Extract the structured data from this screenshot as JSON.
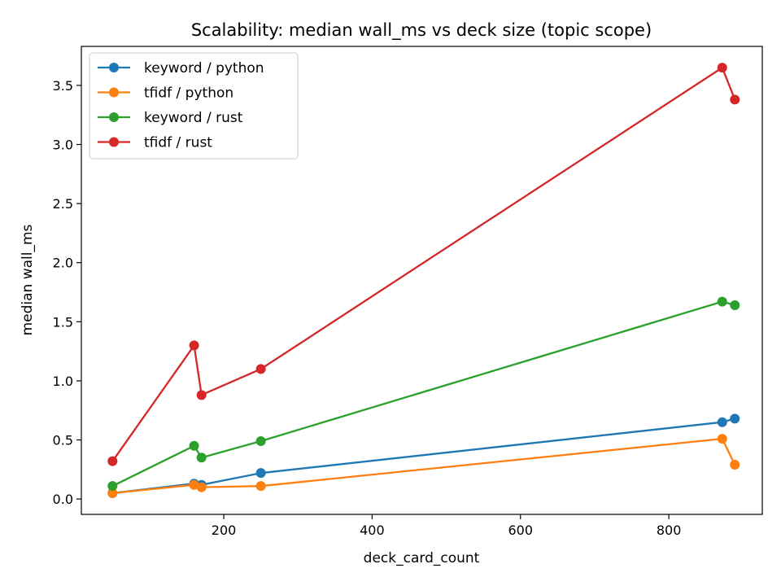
{
  "chart_data": {
    "type": "line",
    "title": "Scalability: median wall_ms vs deck size (topic scope)",
    "xlabel": "deck_card_count",
    "ylabel": "median wall_ms",
    "xlim": [
      8,
      926
    ],
    "ylim": [
      -0.13,
      3.83
    ],
    "xticks": [
      200,
      400,
      600,
      800
    ],
    "yticks": [
      0.0,
      0.5,
      1.0,
      1.5,
      2.0,
      2.5,
      3.0,
      3.5
    ],
    "xtick_labels": [
      "200",
      "400",
      "600",
      "800"
    ],
    "ytick_labels": [
      "0.0",
      "0.5",
      "1.0",
      "1.5",
      "2.0",
      "2.5",
      "3.0",
      "3.5"
    ],
    "grid": false,
    "legend_position": "top-left",
    "series": [
      {
        "name": "keyword / python",
        "color": "#1f77b4",
        "x": [
          50,
          160,
          170,
          250,
          872,
          889
        ],
        "y": [
          0.05,
          0.13,
          0.12,
          0.22,
          0.65,
          0.68
        ]
      },
      {
        "name": "tfidf / python",
        "color": "#ff7f0e",
        "x": [
          50,
          160,
          170,
          250,
          872,
          889
        ],
        "y": [
          0.05,
          0.12,
          0.1,
          0.11,
          0.51,
          0.29
        ]
      },
      {
        "name": "keyword / rust",
        "color": "#2ca02c",
        "x": [
          50,
          160,
          170,
          250,
          872,
          889
        ],
        "y": [
          0.11,
          0.45,
          0.35,
          0.49,
          1.67,
          1.64
        ]
      },
      {
        "name": "tfidf / rust",
        "color": "#d62728",
        "x": [
          50,
          160,
          170,
          250,
          872,
          889
        ],
        "y": [
          0.32,
          1.3,
          0.88,
          1.1,
          3.65,
          3.38
        ]
      }
    ]
  }
}
